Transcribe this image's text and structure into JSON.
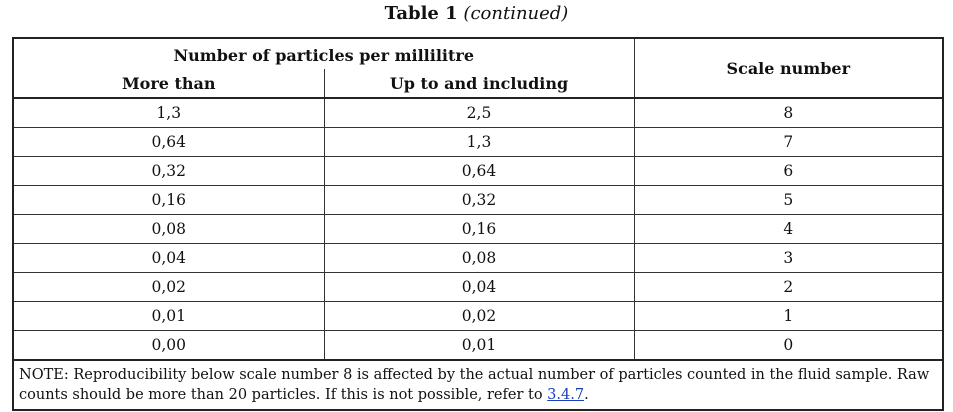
{
  "caption": {
    "main": "Table 1",
    "continued": "(continued)"
  },
  "table": {
    "group_header": "Number of particles per millilitre",
    "col_more_than": "More than",
    "col_up_to": "Up to and including",
    "col_scale": "Scale number",
    "rows": [
      [
        "1,3",
        "2,5",
        "8"
      ],
      [
        "0,64",
        "1,3",
        "7"
      ],
      [
        "0,32",
        "0,64",
        "6"
      ],
      [
        "0,16",
        "0,32",
        "5"
      ],
      [
        "0,08",
        "0,16",
        "4"
      ],
      [
        "0,04",
        "0,08",
        "3"
      ],
      [
        "0,02",
        "0,04",
        "2"
      ],
      [
        "0,01",
        "0,02",
        "1"
      ],
      [
        "0,00",
        "0,01",
        "0"
      ]
    ],
    "note_text": "NOTE: Reproducibility below scale number 8 is affected by the actual number of particles counted in the fluid sample. Raw counts should be more than 20 particles. If this is not possible, refer to ",
    "note_link": "3.4.7",
    "note_end": "."
  }
}
